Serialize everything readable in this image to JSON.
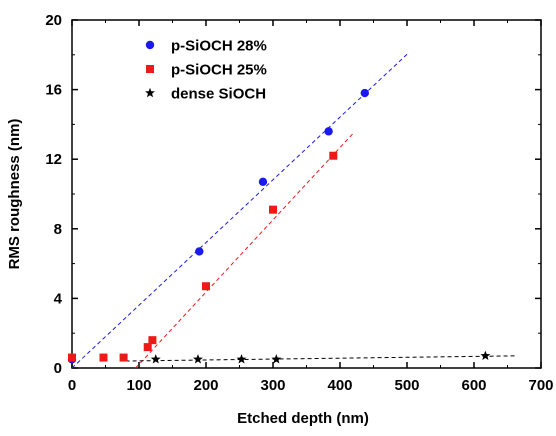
{
  "chart_data": {
    "type": "scatter",
    "title": "",
    "xlabel": "Etched depth (nm)",
    "ylabel": "RMS roughness (nm)",
    "xlim": [
      0,
      700
    ],
    "ylim": [
      0,
      20
    ],
    "xticks": [
      0,
      100,
      200,
      300,
      400,
      500,
      600,
      700
    ],
    "yticks": [
      0,
      4,
      8,
      12,
      16,
      20
    ],
    "grid": false,
    "legend_position": "top-left",
    "series": [
      {
        "name": "p-SiOCH 28%",
        "marker": "circle",
        "color": "#1a1aee",
        "points": [
          [
            0,
            0.5
          ],
          [
            190,
            6.7
          ],
          [
            285,
            10.7
          ],
          [
            383,
            13.6
          ],
          [
            437,
            15.8
          ]
        ],
        "trendline": {
          "x": [
            0,
            502
          ],
          "y": [
            0.0,
            18.1
          ],
          "style": "dashed"
        }
      },
      {
        "name": "p-SiOCH 25%",
        "marker": "square",
        "color": "#ee1a1a",
        "points": [
          [
            0,
            0.6
          ],
          [
            47,
            0.6
          ],
          [
            77,
            0.6
          ],
          [
            113,
            1.2
          ],
          [
            120,
            1.6
          ],
          [
            200,
            4.7
          ],
          [
            300,
            9.1
          ],
          [
            390,
            12.2
          ]
        ],
        "trendline": {
          "x": [
            95,
            420
          ],
          "y": [
            0.0,
            13.5
          ],
          "style": "dashed"
        }
      },
      {
        "name": "dense SiOCH",
        "marker": "star",
        "color": "#000000",
        "points": [
          [
            125,
            0.5
          ],
          [
            188,
            0.5
          ],
          [
            253,
            0.5
          ],
          [
            305,
            0.5
          ],
          [
            617,
            0.7
          ]
        ],
        "trendline": {
          "x": [
            80,
            665
          ],
          "y": [
            0.4,
            0.7
          ],
          "style": "dashed"
        }
      }
    ]
  }
}
